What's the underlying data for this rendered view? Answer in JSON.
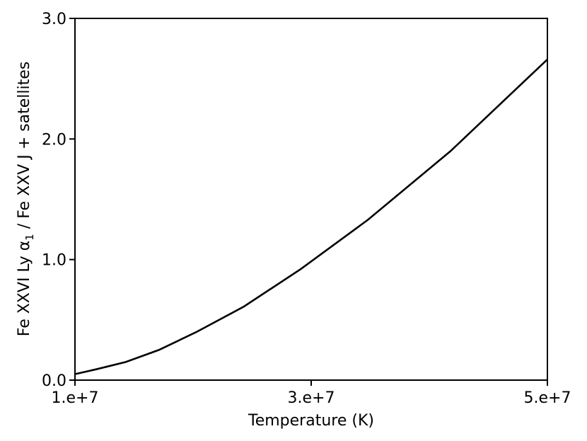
{
  "chart_data": {
    "type": "line",
    "title": "",
    "xlabel": "Temperature (K)",
    "ylabel_main": "Fe XXVI Ly α",
    "ylabel_sub": "1",
    "ylabel_rest": " / Fe XXV J + satellites",
    "xlim": [
      10000000,
      50000000
    ],
    "ylim": [
      0.0,
      3.0
    ],
    "x_ticks": [
      {
        "value": 10000000,
        "label": "1.e+7"
      },
      {
        "value": 30000000,
        "label": "3.e+7"
      },
      {
        "value": 50000000,
        "label": "5.e+7"
      }
    ],
    "y_ticks": [
      {
        "value": 0.0,
        "label": "0.0"
      },
      {
        "value": 1.0,
        "label": "1.0"
      },
      {
        "value": 2.0,
        "label": "2.0"
      },
      {
        "value": 3.0,
        "label": "3.0"
      }
    ],
    "grid": false,
    "series": [
      {
        "color": "#000000",
        "x": [
          10000000,
          11800000,
          14300000,
          17100000,
          20300000,
          24300000,
          29100000,
          34800000,
          41800000,
          50000000
        ],
        "y": [
          0.05,
          0.09,
          0.15,
          0.25,
          0.4,
          0.61,
          0.92,
          1.33,
          1.9,
          2.66
        ]
      }
    ]
  }
}
